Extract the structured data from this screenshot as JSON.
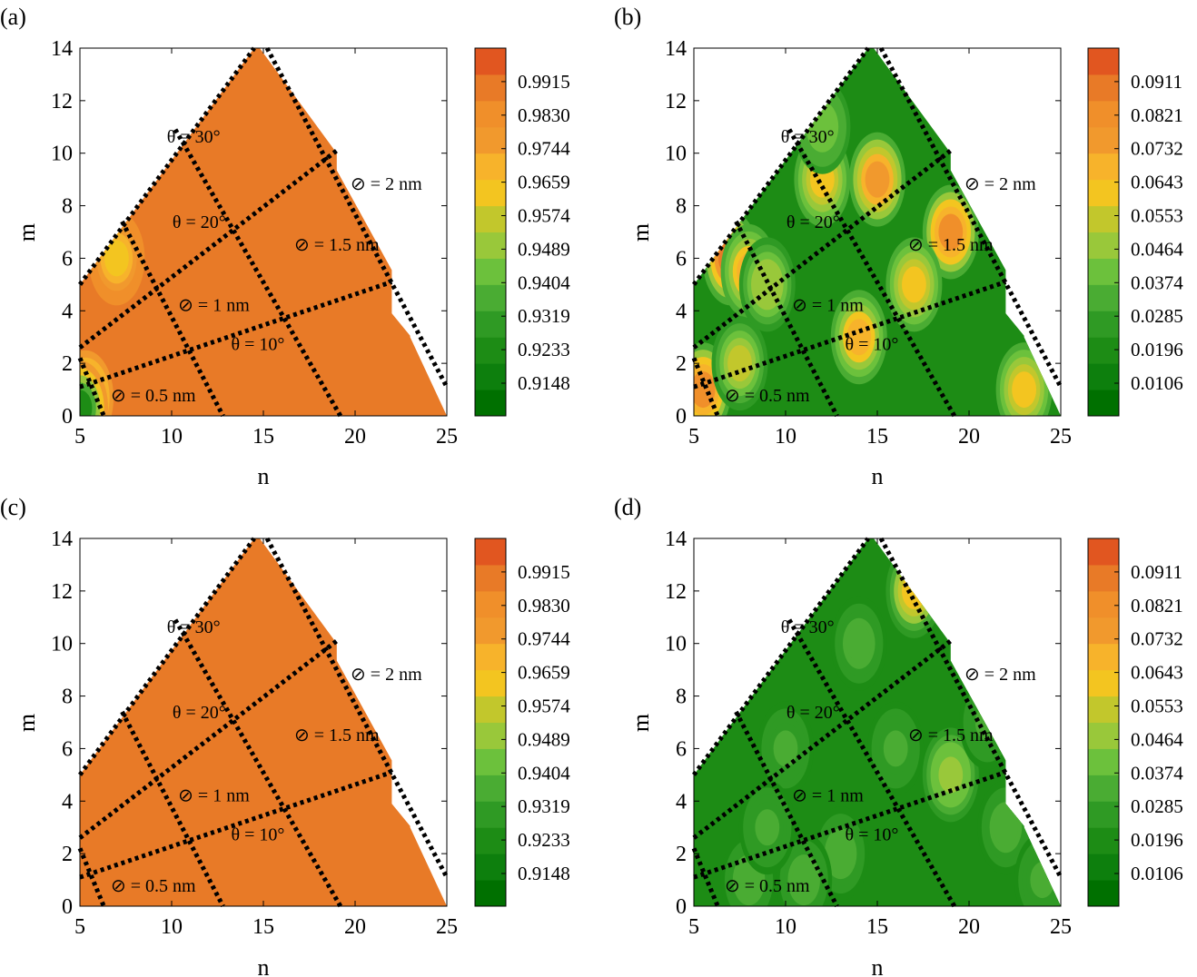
{
  "chart_data": [
    {
      "type": "heatmap",
      "panel": "(a)",
      "xlabel": "n",
      "ylabel": "m",
      "xlim": [
        5,
        25
      ],
      "ylim": [
        0,
        14
      ],
      "xticks": [
        "5",
        "10",
        "15",
        "20",
        "25"
      ],
      "yticks": [
        "0",
        "2",
        "4",
        "6",
        "8",
        "10",
        "12",
        "14"
      ],
      "colorbar": {
        "ticks": [
          "0.9915",
          "0.9830",
          "0.9744",
          "0.9659",
          "0.9574",
          "0.9489",
          "0.9404",
          "0.9319",
          "0.9233",
          "0.9148"
        ]
      },
      "annotations": [
        "θ = 30°",
        "θ = 20°",
        "θ = 10°",
        "⊘ = 2 nm",
        "⊘ = 1.5 nm",
        "⊘ = 1 nm",
        "⊘ = 0.5 nm"
      ],
      "base_level": 0.995,
      "hotspots": [
        {
          "n": 7,
          "m": 6,
          "level": 0.965
        },
        {
          "n": 5.3,
          "m": 0.7,
          "level": 0.93
        },
        {
          "n": 5,
          "m": 0.3,
          "level": 0.92
        }
      ]
    },
    {
      "type": "heatmap",
      "panel": "(b)",
      "xlabel": "n",
      "ylabel": "m",
      "xlim": [
        5,
        25
      ],
      "ylim": [
        0,
        14
      ],
      "xticks": [
        "5",
        "10",
        "15",
        "20",
        "25"
      ],
      "yticks": [
        "0",
        "2",
        "4",
        "6",
        "8",
        "10",
        "12",
        "14"
      ],
      "colorbar": {
        "ticks": [
          "0.0911",
          "0.0821",
          "0.0732",
          "0.0643",
          "0.0553",
          "0.0464",
          "0.0374",
          "0.0285",
          "0.0196",
          "0.0106"
        ]
      },
      "annotations": [
        "θ = 30°",
        "θ = 20°",
        "θ = 10°",
        "⊘ = 2 nm",
        "⊘ = 1.5 nm",
        "⊘ = 1 nm",
        "⊘ = 0.5 nm"
      ],
      "base_level": 0.02,
      "hotspots": [
        {
          "n": 7,
          "m": 6,
          "level": 0.09
        },
        {
          "n": 8,
          "m": 5.5,
          "level": 0.07
        },
        {
          "n": 5.5,
          "m": 1,
          "level": 0.085
        },
        {
          "n": 15,
          "m": 9,
          "level": 0.08
        },
        {
          "n": 19,
          "m": 7,
          "level": 0.085
        },
        {
          "n": 12,
          "m": 9,
          "level": 0.06
        },
        {
          "n": 14,
          "m": 3,
          "level": 0.07
        },
        {
          "n": 17,
          "m": 5,
          "level": 0.065
        },
        {
          "n": 23,
          "m": 1,
          "level": 0.06
        },
        {
          "n": 7.5,
          "m": 2,
          "level": 0.055
        },
        {
          "n": 12,
          "m": 11,
          "level": 0.04
        },
        {
          "n": 9,
          "m": 5,
          "level": 0.05
        }
      ]
    },
    {
      "type": "heatmap",
      "panel": "(c)",
      "xlabel": "n",
      "ylabel": "m",
      "xlim": [
        5,
        25
      ],
      "ylim": [
        0,
        14
      ],
      "xticks": [
        "5",
        "10",
        "15",
        "20",
        "25"
      ],
      "yticks": [
        "0",
        "2",
        "4",
        "6",
        "8",
        "10",
        "12",
        "14"
      ],
      "colorbar": {
        "ticks": [
          "0.9915",
          "0.9830",
          "0.9744",
          "0.9659",
          "0.9574",
          "0.9489",
          "0.9404",
          "0.9319",
          "0.9233",
          "0.9148"
        ]
      },
      "annotations": [
        "θ = 30°",
        "θ = 20°",
        "θ = 10°",
        "⊘ = 2 nm",
        "⊘ = 1.5 nm",
        "⊘ = 1 nm",
        "⊘ = 0.5 nm"
      ],
      "base_level": 0.995,
      "hotspots": []
    },
    {
      "type": "heatmap",
      "panel": "(d)",
      "xlabel": "n",
      "ylabel": "m",
      "xlim": [
        5,
        25
      ],
      "ylim": [
        0,
        14
      ],
      "xticks": [
        "5",
        "10",
        "15",
        "20",
        "25"
      ],
      "yticks": [
        "0",
        "2",
        "4",
        "6",
        "8",
        "10",
        "12",
        "14"
      ],
      "colorbar": {
        "ticks": [
          "0.0911",
          "0.0821",
          "0.0732",
          "0.0643",
          "0.0553",
          "0.0464",
          "0.0374",
          "0.0285",
          "0.0196",
          "0.0106"
        ]
      },
      "annotations": [
        "θ = 30°",
        "θ = 20°",
        "θ = 10°",
        "⊘ = 2 nm",
        "⊘ = 1.5 nm",
        "⊘ = 1 nm",
        "⊘ = 0.5 nm"
      ],
      "base_level": 0.015,
      "hotspots": [
        {
          "n": 17,
          "m": 12,
          "level": 0.065
        },
        {
          "n": 19,
          "m": 5,
          "level": 0.05
        },
        {
          "n": 22,
          "m": 3,
          "level": 0.035
        },
        {
          "n": 13,
          "m": 2,
          "level": 0.035
        },
        {
          "n": 8,
          "m": 1,
          "level": 0.035
        },
        {
          "n": 11,
          "m": 1,
          "level": 0.035
        },
        {
          "n": 14,
          "m": 10,
          "level": 0.035
        },
        {
          "n": 21,
          "m": 7,
          "level": 0.03
        },
        {
          "n": 16,
          "m": 6,
          "level": 0.03
        },
        {
          "n": 10,
          "m": 6,
          "level": 0.028
        },
        {
          "n": 24,
          "m": 1,
          "level": 0.03
        },
        {
          "n": 9,
          "m": 3,
          "level": 0.028
        }
      ]
    }
  ]
}
